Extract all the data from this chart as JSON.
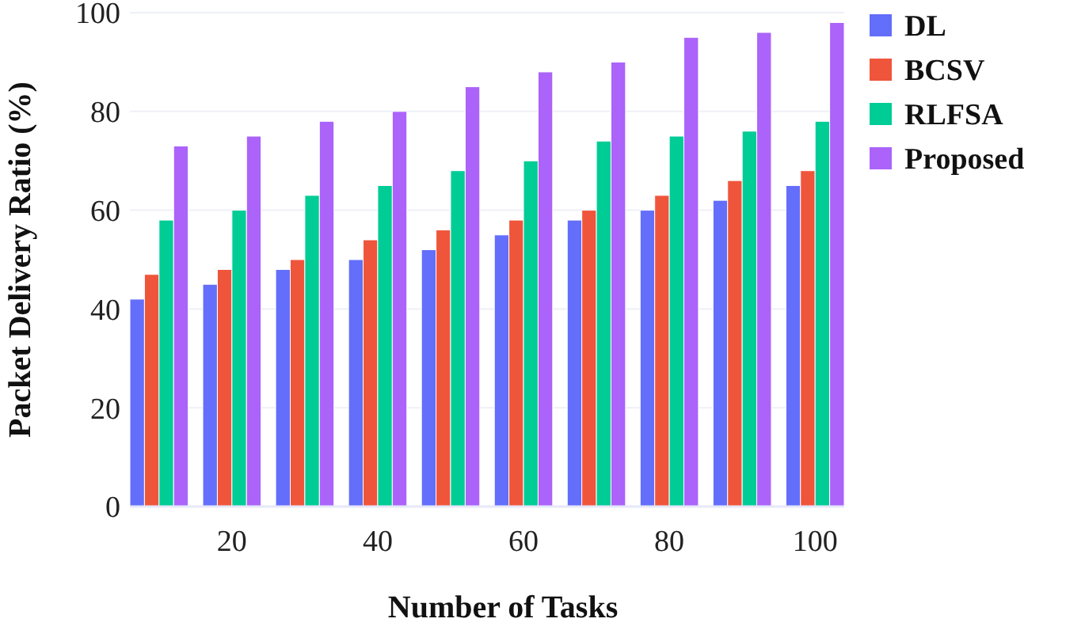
{
  "chart_data": {
    "type": "bar",
    "xlabel": "Number of Tasks",
    "ylabel": "Packet Delivery Ratio (%)",
    "x": [
      10,
      20,
      30,
      40,
      50,
      60,
      70,
      80,
      90,
      100
    ],
    "series": [
      {
        "name": "DL",
        "color": "#636efa",
        "values": [
          42,
          45,
          48,
          50,
          52,
          55,
          58,
          60,
          62,
          65
        ]
      },
      {
        "name": "BCSV",
        "color": "#ef553b",
        "values": [
          47,
          48,
          50,
          54,
          56,
          58,
          60,
          63,
          66,
          68
        ]
      },
      {
        "name": "RLFSA",
        "color": "#00cc96",
        "values": [
          58,
          60,
          63,
          65,
          68,
          70,
          74,
          75,
          76,
          78
        ]
      },
      {
        "name": "Proposed",
        "color": "#ab63fa",
        "values": [
          73,
          75,
          78,
          80,
          85,
          88,
          90,
          95,
          96,
          98
        ]
      }
    ],
    "xlim": [
      6,
      104
    ],
    "xticks": [
      20,
      40,
      60,
      80,
      100
    ],
    "ylim": [
      0,
      100
    ],
    "yticks": [
      0,
      20,
      40,
      60,
      80,
      100
    ],
    "grid": "y",
    "legend": "top right"
  }
}
